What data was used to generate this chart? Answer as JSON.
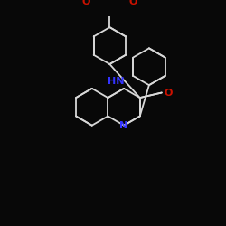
{
  "bg_color": "#080808",
  "bond_color": "#d8d8d8",
  "N_color": "#3333ff",
  "O_color": "#cc1100",
  "bond_width": 1.3,
  "dbo": 0.018,
  "figsize": [
    2.5,
    2.5
  ],
  "dpi": 100,
  "xlim": [
    0,
    250
  ],
  "ylim": [
    0,
    250
  ]
}
